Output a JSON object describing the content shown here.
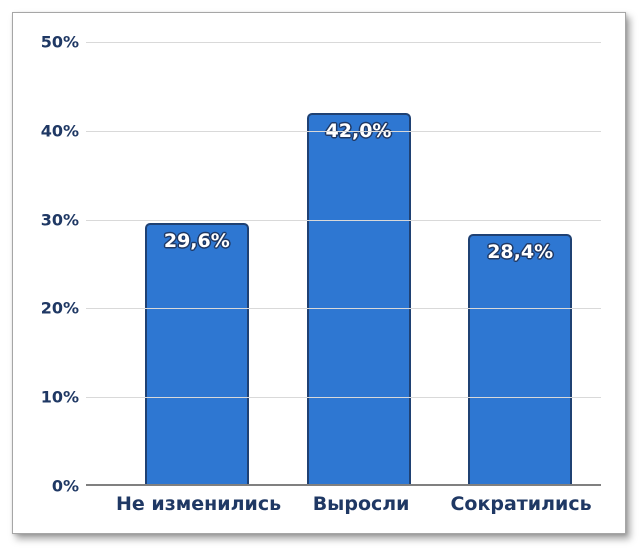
{
  "chart_data": {
    "type": "bar",
    "title": "",
    "xlabel": "",
    "ylabel": "",
    "categories": [
      "Не изменились",
      "Выросли",
      "Сократились"
    ],
    "values": [
      29.6,
      42.0,
      28.4
    ],
    "value_labels": [
      "29,6%",
      "42,0%",
      "28,4%"
    ],
    "ylim": [
      0,
      50
    ],
    "ytick_step": 10,
    "ytick_labels": [
      "0%",
      "10%",
      "20%",
      "30%",
      "40%",
      "50%"
    ],
    "grid": true,
    "legend": false,
    "colors": {
      "bar_fill": "#2E77D2",
      "bar_border": "#1F4173",
      "axis_text": "#1F3864",
      "gridline": "#D9D9D9",
      "baseline": "#808080",
      "label_text": "#FFFFFF",
      "label_outline": "#1F3864",
      "card_bg": "#FFFFFF",
      "card_border": "#A6A6A6"
    }
  }
}
